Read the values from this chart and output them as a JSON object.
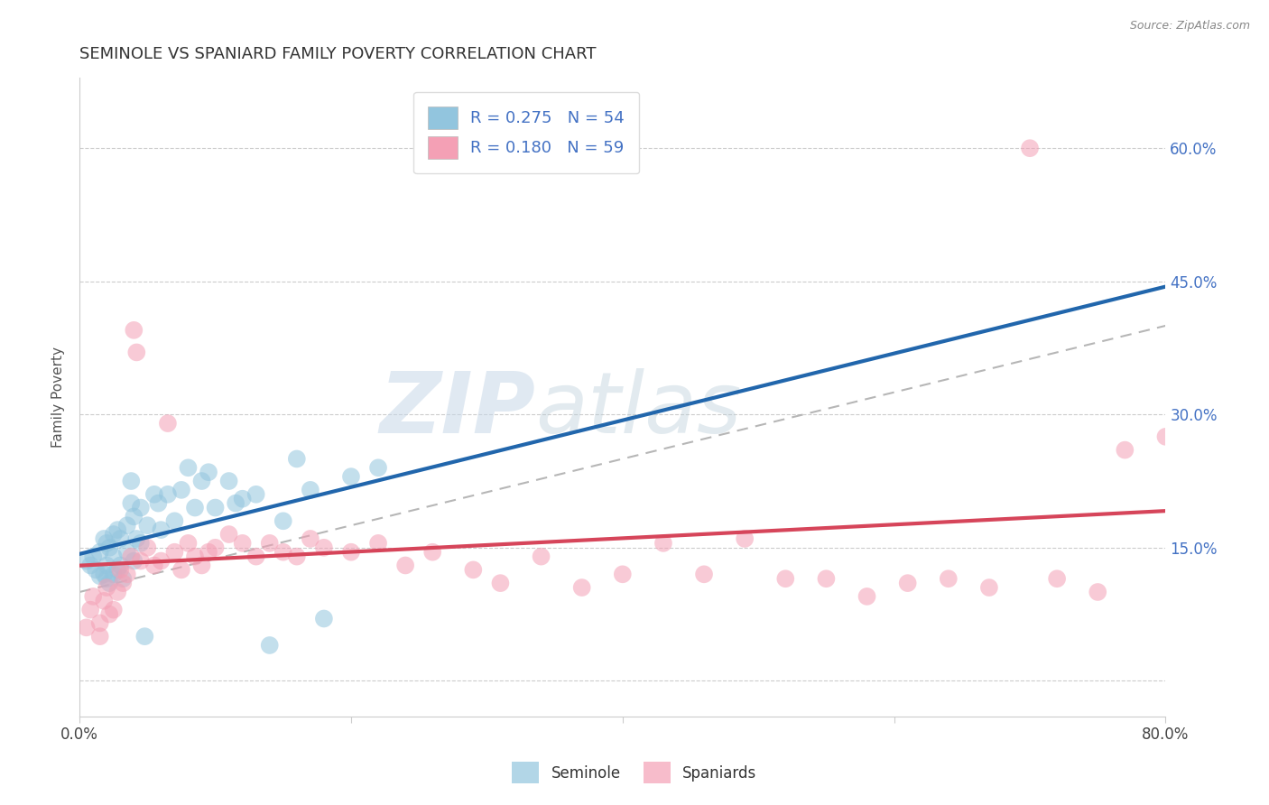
{
  "title": "SEMINOLE VS SPANIARD FAMILY POVERTY CORRELATION CHART",
  "source": "Source: ZipAtlas.com",
  "ylabel": "Family Poverty",
  "xlabel": "",
  "xlim": [
    0.0,
    0.8
  ],
  "ylim": [
    -0.04,
    0.68
  ],
  "x_ticks": [
    0.0,
    0.2,
    0.4,
    0.6,
    0.8
  ],
  "y_ticks": [
    0.0,
    0.15,
    0.3,
    0.45,
    0.6
  ],
  "seminole_R": 0.275,
  "seminole_N": 54,
  "spaniard_R": 0.18,
  "spaniard_N": 59,
  "seminole_color": "#92c5de",
  "spaniard_color": "#f4a0b5",
  "seminole_line_color": "#2166ac",
  "spaniard_line_color": "#d6455a",
  "watermark_zip": "ZIP",
  "watermark_atlas": "atlas",
  "seminole_x": [
    0.005,
    0.008,
    0.01,
    0.012,
    0.015,
    0.015,
    0.018,
    0.018,
    0.02,
    0.02,
    0.02,
    0.022,
    0.022,
    0.025,
    0.025,
    0.025,
    0.028,
    0.028,
    0.03,
    0.03,
    0.032,
    0.035,
    0.035,
    0.038,
    0.038,
    0.04,
    0.04,
    0.042,
    0.045,
    0.045,
    0.048,
    0.05,
    0.055,
    0.058,
    0.06,
    0.065,
    0.07,
    0.075,
    0.08,
    0.085,
    0.09,
    0.095,
    0.1,
    0.11,
    0.115,
    0.12,
    0.13,
    0.14,
    0.15,
    0.16,
    0.17,
    0.18,
    0.2,
    0.22
  ],
  "seminole_y": [
    0.135,
    0.13,
    0.14,
    0.125,
    0.118,
    0.145,
    0.12,
    0.16,
    0.115,
    0.13,
    0.155,
    0.11,
    0.15,
    0.12,
    0.14,
    0.165,
    0.125,
    0.17,
    0.13,
    0.16,
    0.115,
    0.145,
    0.175,
    0.2,
    0.225,
    0.135,
    0.185,
    0.16,
    0.155,
    0.195,
    0.05,
    0.175,
    0.21,
    0.2,
    0.17,
    0.21,
    0.18,
    0.215,
    0.24,
    0.195,
    0.225,
    0.235,
    0.195,
    0.225,
    0.2,
    0.205,
    0.21,
    0.04,
    0.18,
    0.25,
    0.215,
    0.07,
    0.23,
    0.24
  ],
  "spaniard_x": [
    0.005,
    0.008,
    0.01,
    0.015,
    0.015,
    0.018,
    0.02,
    0.022,
    0.025,
    0.028,
    0.03,
    0.032,
    0.035,
    0.038,
    0.04,
    0.042,
    0.045,
    0.05,
    0.055,
    0.06,
    0.065,
    0.07,
    0.075,
    0.08,
    0.085,
    0.09,
    0.095,
    0.1,
    0.11,
    0.12,
    0.13,
    0.14,
    0.15,
    0.16,
    0.17,
    0.18,
    0.2,
    0.22,
    0.24,
    0.26,
    0.29,
    0.31,
    0.34,
    0.37,
    0.4,
    0.43,
    0.46,
    0.49,
    0.52,
    0.55,
    0.58,
    0.61,
    0.64,
    0.67,
    0.7,
    0.72,
    0.75,
    0.77,
    0.8
  ],
  "spaniard_y": [
    0.06,
    0.08,
    0.095,
    0.05,
    0.065,
    0.09,
    0.105,
    0.075,
    0.08,
    0.1,
    0.125,
    0.11,
    0.12,
    0.14,
    0.395,
    0.37,
    0.135,
    0.15,
    0.13,
    0.135,
    0.29,
    0.145,
    0.125,
    0.155,
    0.14,
    0.13,
    0.145,
    0.15,
    0.165,
    0.155,
    0.14,
    0.155,
    0.145,
    0.14,
    0.16,
    0.15,
    0.145,
    0.155,
    0.13,
    0.145,
    0.125,
    0.11,
    0.14,
    0.105,
    0.12,
    0.155,
    0.12,
    0.16,
    0.115,
    0.115,
    0.095,
    0.11,
    0.115,
    0.105,
    0.6,
    0.115,
    0.1,
    0.26,
    0.275
  ]
}
